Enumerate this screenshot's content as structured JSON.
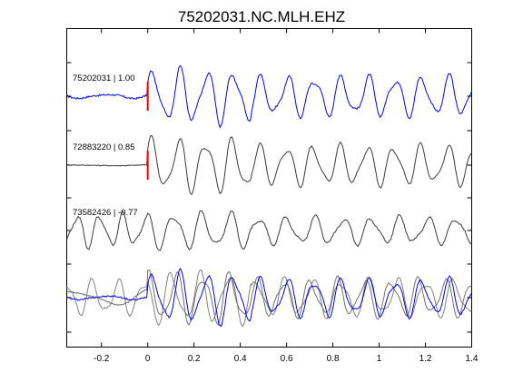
{
  "chart_data": {
    "type": "line",
    "title": "75202031.NC.MLH.EHZ",
    "xlabel": "",
    "ylabel": "",
    "xlim": [
      -0.35,
      1.4
    ],
    "xticks": [
      -0.2,
      0,
      0.2,
      0.4,
      0.6,
      0.8,
      1,
      1.2,
      1.4
    ],
    "xtick_labels": [
      "-0.2",
      "0",
      "0.2",
      "0.4",
      "0.6",
      "0.8",
      "1",
      "1.2",
      "1.4"
    ],
    "grid": false,
    "legend": "none",
    "pick_marker": {
      "x": 0,
      "color": "#ff0000"
    },
    "traces": [
      {
        "label": "75202031 | 1.00",
        "color": "#0000ff",
        "pick": true,
        "baseline_level": 1
      },
      {
        "label": "72883220 | 0.85",
        "color": "#3a3a3a",
        "pick": true,
        "baseline_level": 2
      },
      {
        "label": "73582426 | -0.77",
        "color": "#3a3a3a",
        "pick": false,
        "baseline_level": 3
      }
    ],
    "overlay": {
      "baseline_level": 4,
      "colors": [
        "#808080",
        "#707070",
        "#0000ff"
      ]
    },
    "series": [
      {
        "name": "75202031 | 1.00",
        "x": [
          -0.35,
          -0.3,
          -0.25,
          -0.2,
          -0.15,
          -0.1,
          -0.05,
          0,
          0.03,
          0.07,
          0.1,
          0.13,
          0.17,
          0.2,
          0.23,
          0.27,
          0.3,
          0.33,
          0.37,
          0.4,
          0.45,
          0.5,
          0.55,
          0.6,
          0.65,
          0.7,
          0.75,
          0.8,
          0.85,
          0.9,
          0.95,
          1,
          1.05,
          1.1,
          1.15,
          1.2,
          1.25,
          1.3,
          1.35,
          1.4
        ],
        "y": [
          0.1,
          0.15,
          0.3,
          0.05,
          0.2,
          0.1,
          0.0,
          0.05,
          0.7,
          -0.6,
          0.9,
          -0.9,
          1.0,
          -0.9,
          1.0,
          -0.9,
          0.8,
          -0.8,
          0.7,
          -0.6,
          0.2,
          0.6,
          -0.5,
          0.3,
          -0.3,
          0.4,
          -0.4,
          0.5,
          -0.3,
          0.3,
          -0.4,
          0.5,
          -0.5,
          0.6,
          -0.2,
          0.3,
          0.1,
          0.4,
          -0.6,
          0.5
        ]
      }
    ]
  }
}
